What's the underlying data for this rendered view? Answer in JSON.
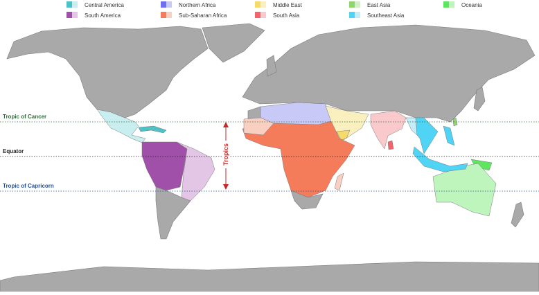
{
  "legend": {
    "items": [
      {
        "label": "Central America",
        "dark": "#4ec1c6",
        "light": "#c9eef0"
      },
      {
        "label": "Northern Africa",
        "dark": "#6f6ff0",
        "light": "#c9c9f8"
      },
      {
        "label": "Middle East",
        "dark": "#f5dc6a",
        "light": "#faf0bf"
      },
      {
        "label": "East Asia",
        "dark": "#8fd46f",
        "light": "#d3f0c4"
      },
      {
        "label": "Oceania",
        "dark": "#5ee65e",
        "light": "#bdf5bd"
      },
      {
        "label": "South America",
        "dark": "#a050a8",
        "light": "#e3c6e6"
      },
      {
        "label": "Sub-Saharan Africa",
        "dark": "#f47c5a",
        "light": "#f9cfc2"
      },
      {
        "label": "South Asia",
        "dark": "#f2636a",
        "light": "#fac9cb"
      },
      {
        "label": "Southeast Asia",
        "dark": "#4fd4f5",
        "light": "#c3eef9"
      }
    ]
  },
  "lines": [
    {
      "label": "Tropic of Cancer",
      "color": "#2e6b3a"
    },
    {
      "label": "Equator",
      "color": "#222222"
    },
    {
      "label": "Tropic of Capricorn",
      "color": "#1f4e96"
    }
  ],
  "annotation": {
    "label": "Tropics",
    "color": "#c62828"
  }
}
